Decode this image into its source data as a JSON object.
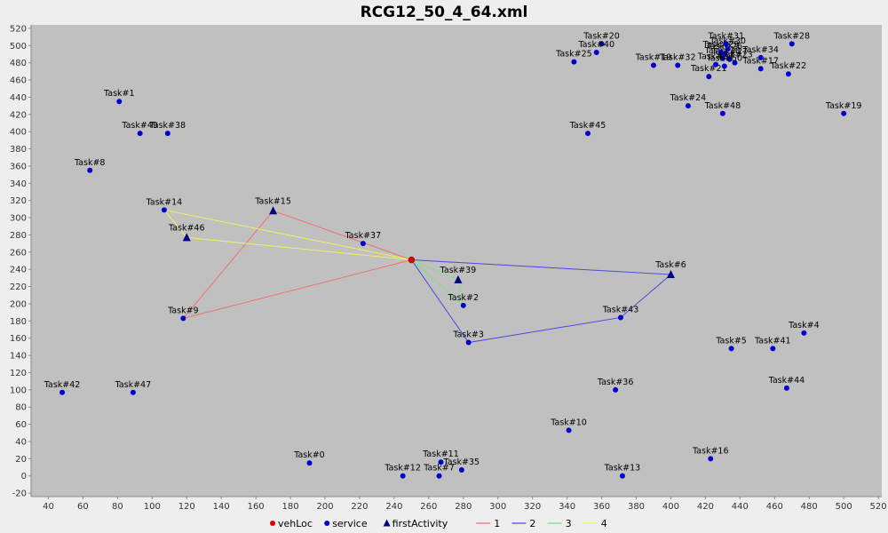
{
  "chart_data": {
    "type": "scatter",
    "title": "RCG12_50_4_64.xml",
    "xlim": [
      30,
      522
    ],
    "ylim": [
      -24,
      524
    ],
    "xticks": [
      40,
      60,
      80,
      100,
      120,
      140,
      160,
      180,
      200,
      220,
      240,
      260,
      280,
      300,
      320,
      340,
      360,
      380,
      400,
      420,
      440,
      460,
      480,
      500,
      520
    ],
    "yticks": [
      -20,
      0,
      20,
      40,
      60,
      80,
      100,
      120,
      140,
      160,
      180,
      200,
      220,
      240,
      260,
      280,
      300,
      320,
      340,
      360,
      380,
      400,
      420,
      440,
      460,
      480,
      500,
      520
    ],
    "colors": {
      "plot_bg": "#c0c0c0",
      "service": "#0000cc",
      "vehLoc": "#dd0000",
      "firstActivity": "#000080",
      "route_1": "#f07070",
      "route_2": "#4a4adc",
      "route_3": "#80e080",
      "route_4": "#f0f060"
    },
    "vehLoc": {
      "label": "",
      "x": 250,
      "y": 251
    },
    "service": [
      {
        "label": "Task#0",
        "x": 191,
        "y": 15
      },
      {
        "label": "Task#1",
        "x": 81,
        "y": 435
      },
      {
        "label": "Task#2",
        "x": 280,
        "y": 198
      },
      {
        "label": "Task#3",
        "x": 283,
        "y": 155
      },
      {
        "label": "Task#4",
        "x": 477,
        "y": 166
      },
      {
        "label": "Task#5",
        "x": 435,
        "y": 148
      },
      {
        "label": "Task#7",
        "x": 266,
        "y": 0
      },
      {
        "label": "Task#8",
        "x": 64,
        "y": 355
      },
      {
        "label": "Task#9",
        "x": 118,
        "y": 183
      },
      {
        "label": "Task#10",
        "x": 341,
        "y": 53
      },
      {
        "label": "Task#11",
        "x": 267,
        "y": 16
      },
      {
        "label": "Task#12",
        "x": 245,
        "y": 0
      },
      {
        "label": "Task#13",
        "x": 372,
        "y": 0
      },
      {
        "label": "Task#14",
        "x": 107,
        "y": 309
      },
      {
        "label": "Task#16",
        "x": 423,
        "y": 20
      },
      {
        "label": "Task#17",
        "x": 452,
        "y": 473
      },
      {
        "label": "Task#18",
        "x": 430,
        "y": 485
      },
      {
        "label": "Task#19",
        "x": 500,
        "y": 421
      },
      {
        "label": "Task#20",
        "x": 360,
        "y": 502
      },
      {
        "label": "Task#21",
        "x": 422,
        "y": 464
      },
      {
        "label": "Task#22",
        "x": 468,
        "y": 467
      },
      {
        "label": "Task#23",
        "x": 437,
        "y": 480
      },
      {
        "label": "Task#24",
        "x": 410,
        "y": 430
      },
      {
        "label": "Task#25",
        "x": 344,
        "y": 481
      },
      {
        "label": "Task#26",
        "x": 431,
        "y": 490
      },
      {
        "label": "Task#27",
        "x": 434,
        "y": 484
      },
      {
        "label": "Task#28",
        "x": 470,
        "y": 502
      },
      {
        "label": "Task#29",
        "x": 429,
        "y": 492
      },
      {
        "label": "Task#30",
        "x": 433,
        "y": 496
      },
      {
        "label": "Task#31",
        "x": 432,
        "y": 502
      },
      {
        "label": "Task#32",
        "x": 404,
        "y": 477
      },
      {
        "label": "Task#33",
        "x": 426,
        "y": 478
      },
      {
        "label": "Task#34",
        "x": 452,
        "y": 486
      },
      {
        "label": "Task#35",
        "x": 279,
        "y": 7
      },
      {
        "label": "Task#36",
        "x": 368,
        "y": 100
      },
      {
        "label": "Task#37",
        "x": 222,
        "y": 270
      },
      {
        "label": "Task#38",
        "x": 109,
        "y": 398
      },
      {
        "label": "Task#40",
        "x": 357,
        "y": 492
      },
      {
        "label": "Task#41",
        "x": 459,
        "y": 148
      },
      {
        "label": "Task#42",
        "x": 48,
        "y": 97
      },
      {
        "label": "Task#43",
        "x": 371,
        "y": 184
      },
      {
        "label": "Task#44",
        "x": 467,
        "y": 102
      },
      {
        "label": "Task#45",
        "x": 352,
        "y": 398
      },
      {
        "label": "Task#47",
        "x": 89,
        "y": 97
      },
      {
        "label": "Task#48",
        "x": 430,
        "y": 421
      },
      {
        "label": "Task#49",
        "x": 93,
        "y": 398
      },
      {
        "label": "Task#50",
        "x": 431,
        "y": 476
      },
      {
        "label": "Task#19b",
        "x": 390,
        "y": 477
      }
    ],
    "firstActivity": [
      {
        "label": "Task#15",
        "x": 170,
        "y": 308
      },
      {
        "label": "Task#46",
        "x": 120,
        "y": 277
      },
      {
        "label": "Task#39",
        "x": 277,
        "y": 228
      },
      {
        "label": "Task#6",
        "x": 400,
        "y": 234
      }
    ],
    "routes": [
      {
        "name": "1",
        "points": [
          [
            250,
            251
          ],
          [
            170,
            308
          ],
          [
            118,
            183
          ],
          [
            250,
            251
          ]
        ]
      },
      {
        "name": "2",
        "points": [
          [
            250,
            251
          ],
          [
            400,
            234
          ],
          [
            371,
            184
          ],
          [
            283,
            155
          ],
          [
            250,
            251
          ]
        ]
      },
      {
        "name": "3",
        "points": [
          [
            250,
            251
          ],
          [
            277,
            228
          ],
          [
            280,
            198
          ],
          [
            250,
            251
          ]
        ]
      },
      {
        "name": "4",
        "points": [
          [
            250,
            251
          ],
          [
            107,
            309
          ],
          [
            120,
            277
          ],
          [
            250,
            251
          ]
        ]
      }
    ],
    "legend": {
      "position": "bottom",
      "items": [
        {
          "label": "vehLoc",
          "kind": "circle",
          "color": "#dd0000"
        },
        {
          "label": "service",
          "kind": "circle",
          "color": "#0000cc"
        },
        {
          "label": "firstActivity",
          "kind": "triangle",
          "color": "#000080"
        },
        {
          "label": "1",
          "kind": "line",
          "color": "#f07070"
        },
        {
          "label": "2",
          "kind": "line",
          "color": "#4a4adc"
        },
        {
          "label": "3",
          "kind": "line",
          "color": "#80e080"
        },
        {
          "label": "4",
          "kind": "line",
          "color": "#f0f060"
        }
      ]
    }
  }
}
